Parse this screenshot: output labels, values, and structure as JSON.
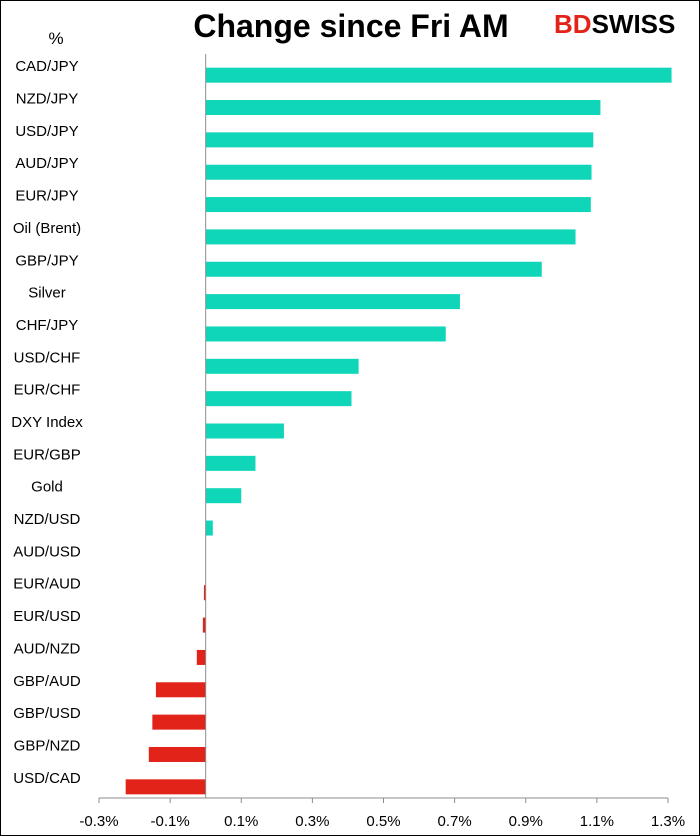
{
  "logo": {
    "part1": "BD",
    "part2": "SWISS"
  },
  "chart_data": {
    "type": "bar",
    "orientation": "horizontal",
    "title": "Change since Fri AM",
    "unit": "%",
    "xlim": [
      -0.3,
      1.3
    ],
    "x_ticks": [
      "-0.3%",
      "-0.1%",
      "0.1%",
      "0.3%",
      "0.5%",
      "0.7%",
      "0.9%",
      "1.1%",
      "1.3%"
    ],
    "x_tick_values": [
      -0.3,
      -0.1,
      0.1,
      0.3,
      0.5,
      0.7,
      0.9,
      1.1,
      1.3
    ],
    "grid": false,
    "legend": "none",
    "positive_color": "#0fd6b8",
    "negative_color": "#e2231a",
    "categories": [
      "CAD/JPY",
      "NZD/JPY",
      "USD/JPY",
      "AUD/JPY",
      "EUR/JPY",
      "Oil (Brent)",
      "GBP/JPY",
      "Silver",
      "CHF/JPY",
      "USD/CHF",
      "EUR/CHF",
      "DXY Index",
      "EUR/GBP",
      "Gold",
      "NZD/USD",
      "AUD/USD",
      "EUR/AUD",
      "EUR/USD",
      "AUD/NZD",
      "GBP/AUD",
      "GBP/USD",
      "GBP/NZD",
      "USD/CAD"
    ],
    "values": [
      1.31,
      1.11,
      1.09,
      1.085,
      1.083,
      1.04,
      0.945,
      0.715,
      0.675,
      0.43,
      0.41,
      0.22,
      0.14,
      0.1,
      0.02,
      0.0,
      -0.005,
      -0.008,
      -0.025,
      -0.14,
      -0.15,
      -0.16,
      -0.225
    ]
  }
}
